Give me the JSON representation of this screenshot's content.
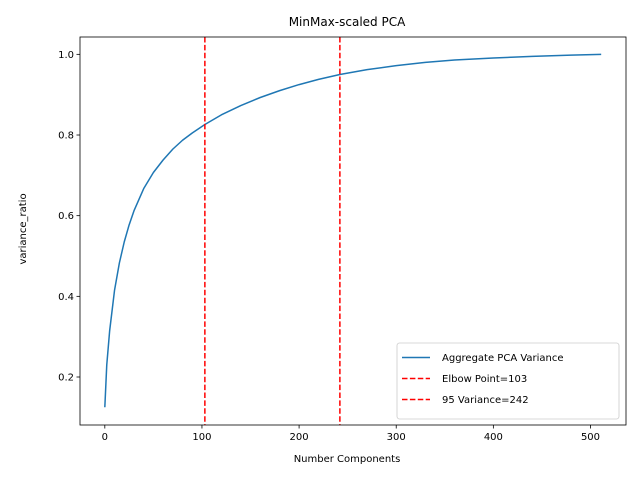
{
  "chart_data": {
    "type": "line",
    "title": "MinMax-scaled PCA",
    "xlabel": "Number Components",
    "ylabel": "variance_ratio",
    "xlim": [
      -25.55,
      536.55
    ],
    "ylim": [
      0.081,
      1.043
    ],
    "xticks": [
      0,
      100,
      200,
      300,
      400,
      500
    ],
    "yticks": [
      0.2,
      0.4,
      0.6,
      0.8,
      1.0
    ],
    "xtick_labels": [
      "0",
      "100",
      "200",
      "300",
      "400",
      "500"
    ],
    "ytick_labels": [
      "0.2",
      "0.4",
      "0.6",
      "0.8",
      "1.0"
    ],
    "grid": false,
    "legend_position": "lower-right",
    "series": [
      {
        "name": "Aggregate PCA Variance",
        "color": "#1f77b4",
        "x": [
          0,
          2,
          5,
          10,
          15,
          20,
          25,
          30,
          40,
          50,
          60,
          70,
          80,
          90,
          103,
          120,
          140,
          160,
          180,
          200,
          220,
          242,
          270,
          300,
          330,
          360,
          400,
          440,
          480,
          511
        ],
        "y": [
          0.125,
          0.23,
          0.315,
          0.415,
          0.483,
          0.535,
          0.577,
          0.612,
          0.667,
          0.707,
          0.738,
          0.765,
          0.787,
          0.805,
          0.826,
          0.85,
          0.873,
          0.893,
          0.91,
          0.925,
          0.938,
          0.95,
          0.962,
          0.972,
          0.98,
          0.986,
          0.991,
          0.995,
          0.998,
          1.0
        ]
      }
    ],
    "vlines": [
      {
        "name": "Elbow Point=103",
        "x": 103,
        "color": "#ff0000",
        "style": "dashed"
      },
      {
        "name": "95 Variance=242",
        "x": 242,
        "color": "#ff0000",
        "style": "dashed"
      }
    ]
  }
}
